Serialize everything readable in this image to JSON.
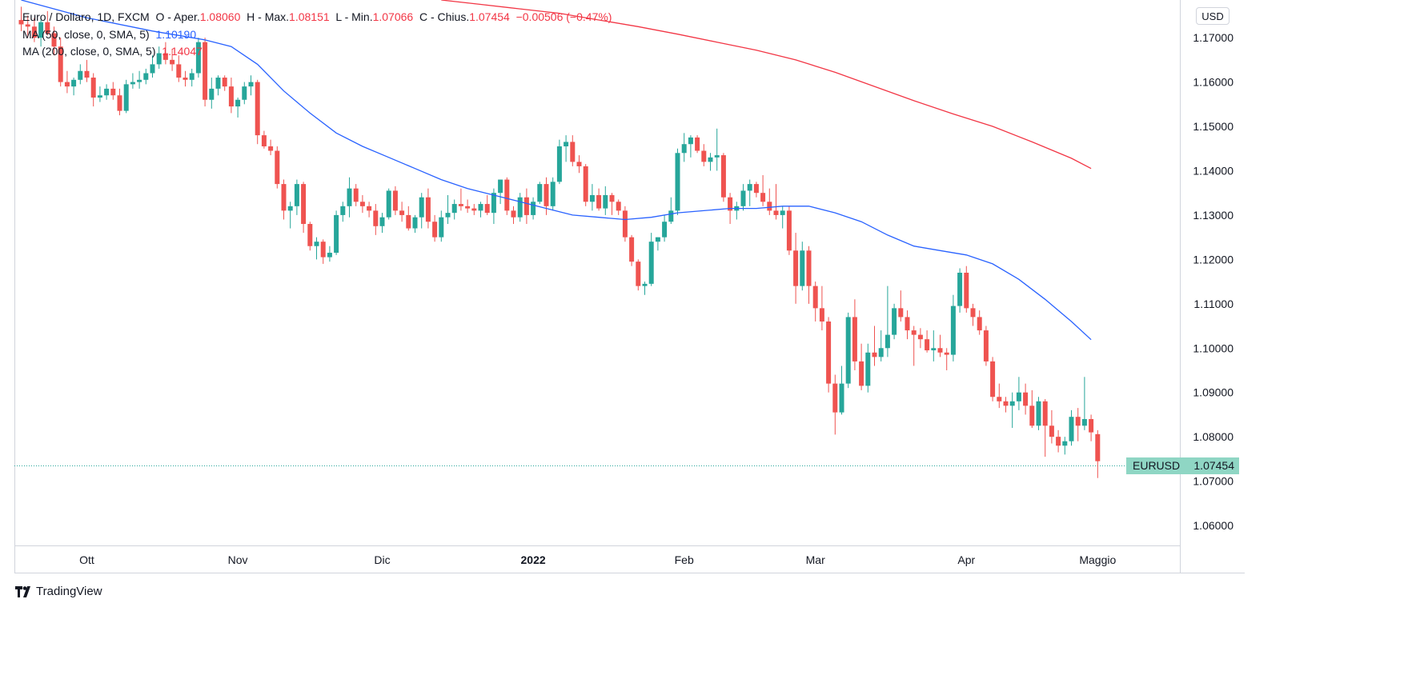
{
  "legend": {
    "symbol": "Euro / Dollaro, 1D, FXCM",
    "open_label": "O - Aper.",
    "open": "1.08060",
    "high_label": "H - Max.",
    "high": "1.08151",
    "low_label": "L - Min.",
    "low": "1.07066",
    "close_label": "C - Chius.",
    "close": "1.07454",
    "change": "−0.00506 (−0.47%)",
    "ma50_label": "MA (50, close, 0, SMA, 5)",
    "ma50_value": "1.10190",
    "ma200_label": "MA (200, close, 0, SMA, 5)",
    "ma200_value": "1.14047"
  },
  "currency": "USD",
  "last_price": {
    "symbol": "EURUSD",
    "value": "1.07454"
  },
  "branding": "TradingView",
  "colors": {
    "up": "#26a69a",
    "down": "#ef5350",
    "ma50": "#2962ff",
    "ma200": "#f23645",
    "grid": "#d1d4dc"
  },
  "chart_data": {
    "type": "candlestick",
    "title": "Euro / Dollaro, 1D, FXCM",
    "ylim": [
      1.0555,
      1.1785
    ],
    "y_ticks": [
      "1.17000",
      "1.16000",
      "1.15000",
      "1.14000",
      "1.13000",
      "1.12000",
      "1.11000",
      "1.10000",
      "1.09000",
      "1.08000",
      "1.07000",
      "1.06000"
    ],
    "x_ticks": [
      {
        "label": "Ott",
        "index": 10,
        "bold": false
      },
      {
        "label": "Nov",
        "index": 33,
        "bold": false
      },
      {
        "label": "Dic",
        "index": 55,
        "bold": false
      },
      {
        "label": "2022",
        "index": 78,
        "bold": true
      },
      {
        "label": "Feb",
        "index": 101,
        "bold": false
      },
      {
        "label": "Mar",
        "index": 121,
        "bold": false
      },
      {
        "label": "Apr",
        "index": 144,
        "bold": false
      },
      {
        "label": "Maggio",
        "index": 164,
        "bold": false
      }
    ],
    "candles": [
      [
        1.174,
        1.177,
        1.1715,
        1.173
      ],
      [
        1.173,
        1.175,
        1.17,
        1.1725
      ],
      [
        1.1725,
        1.1745,
        1.169,
        1.17
      ],
      [
        1.17,
        1.174,
        1.168,
        1.1735
      ],
      [
        1.1735,
        1.176,
        1.1705,
        1.171
      ],
      [
        1.171,
        1.1725,
        1.166,
        1.168
      ],
      [
        1.168,
        1.17,
        1.159,
        1.16
      ],
      [
        1.16,
        1.1625,
        1.1575,
        1.159
      ],
      [
        1.159,
        1.161,
        1.157,
        1.1605
      ],
      [
        1.1605,
        1.164,
        1.1595,
        1.1625
      ],
      [
        1.1625,
        1.165,
        1.16,
        1.161
      ],
      [
        1.161,
        1.162,
        1.1545,
        1.1565
      ],
      [
        1.1565,
        1.159,
        1.1555,
        1.157
      ],
      [
        1.157,
        1.1595,
        1.156,
        1.1585
      ],
      [
        1.1585,
        1.16,
        1.156,
        1.157
      ],
      [
        1.157,
        1.1585,
        1.1525,
        1.1535
      ],
      [
        1.1535,
        1.1605,
        1.153,
        1.1595
      ],
      [
        1.1595,
        1.162,
        1.1585,
        1.16
      ],
      [
        1.16,
        1.1625,
        1.1585,
        1.1605
      ],
      [
        1.1605,
        1.163,
        1.1595,
        1.162
      ],
      [
        1.162,
        1.166,
        1.161,
        1.164
      ],
      [
        1.164,
        1.168,
        1.163,
        1.1665
      ],
      [
        1.1665,
        1.169,
        1.164,
        1.165
      ],
      [
        1.165,
        1.1675,
        1.1625,
        1.164
      ],
      [
        1.164,
        1.166,
        1.16,
        1.161
      ],
      [
        1.161,
        1.1625,
        1.159,
        1.1605
      ],
      [
        1.1605,
        1.163,
        1.159,
        1.162
      ],
      [
        1.162,
        1.17,
        1.161,
        1.169
      ],
      [
        1.169,
        1.17,
        1.1545,
        1.156
      ],
      [
        1.156,
        1.161,
        1.154,
        1.1585
      ],
      [
        1.1585,
        1.1615,
        1.157,
        1.161
      ],
      [
        1.161,
        1.1615,
        1.158,
        1.159
      ],
      [
        1.159,
        1.161,
        1.153,
        1.1545
      ],
      [
        1.1545,
        1.1565,
        1.152,
        1.156
      ],
      [
        1.156,
        1.16,
        1.155,
        1.159
      ],
      [
        1.159,
        1.1615,
        1.157,
        1.16
      ],
      [
        1.16,
        1.1605,
        1.146,
        1.148
      ],
      [
        1.148,
        1.149,
        1.145,
        1.1455
      ],
      [
        1.1455,
        1.147,
        1.1435,
        1.1445
      ],
      [
        1.1445,
        1.1455,
        1.136,
        1.137
      ],
      [
        1.137,
        1.138,
        1.129,
        1.131
      ],
      [
        1.131,
        1.133,
        1.127,
        1.132
      ],
      [
        1.132,
        1.138,
        1.13,
        1.137
      ],
      [
        1.137,
        1.1375,
        1.126,
        1.128
      ],
      [
        1.128,
        1.1285,
        1.122,
        1.123
      ],
      [
        1.123,
        1.125,
        1.12,
        1.124
      ],
      [
        1.124,
        1.1245,
        1.119,
        1.1205
      ],
      [
        1.1205,
        1.123,
        1.1195,
        1.1215
      ],
      [
        1.1215,
        1.131,
        1.121,
        1.13
      ],
      [
        1.13,
        1.133,
        1.1285,
        1.132
      ],
      [
        1.132,
        1.1385,
        1.1295,
        1.136
      ],
      [
        1.136,
        1.137,
        1.132,
        1.133
      ],
      [
        1.133,
        1.1345,
        1.1305,
        1.132
      ],
      [
        1.132,
        1.133,
        1.1295,
        1.131
      ],
      [
        1.131,
        1.1325,
        1.1255,
        1.1275
      ],
      [
        1.1275,
        1.1305,
        1.126,
        1.1295
      ],
      [
        1.1295,
        1.136,
        1.129,
        1.1355
      ],
      [
        1.1355,
        1.1365,
        1.13,
        1.131
      ],
      [
        1.131,
        1.133,
        1.1285,
        1.13
      ],
      [
        1.13,
        1.132,
        1.1265,
        1.127
      ],
      [
        1.127,
        1.13,
        1.126,
        1.1295
      ],
      [
        1.1295,
        1.135,
        1.127,
        1.134
      ],
      [
        1.134,
        1.136,
        1.127,
        1.1285
      ],
      [
        1.1285,
        1.13,
        1.124,
        1.125
      ],
      [
        1.125,
        1.131,
        1.124,
        1.1295
      ],
      [
        1.1295,
        1.1345,
        1.128,
        1.1305
      ],
      [
        1.1305,
        1.1335,
        1.129,
        1.1325
      ],
      [
        1.1325,
        1.136,
        1.131,
        1.132
      ],
      [
        1.132,
        1.1335,
        1.1305,
        1.1315
      ],
      [
        1.1315,
        1.1325,
        1.13,
        1.131
      ],
      [
        1.131,
        1.133,
        1.1295,
        1.1325
      ],
      [
        1.1325,
        1.1345,
        1.13,
        1.1305
      ],
      [
        1.1305,
        1.136,
        1.128,
        1.135
      ],
      [
        1.135,
        1.138,
        1.1325,
        1.138
      ],
      [
        1.138,
        1.1385,
        1.13,
        1.131
      ],
      [
        1.131,
        1.132,
        1.128,
        1.1295
      ],
      [
        1.1295,
        1.135,
        1.1285,
        1.134
      ],
      [
        1.134,
        1.136,
        1.128,
        1.13
      ],
      [
        1.13,
        1.134,
        1.129,
        1.133
      ],
      [
        1.133,
        1.1375,
        1.1325,
        1.137
      ],
      [
        1.137,
        1.1385,
        1.13,
        1.132
      ],
      [
        1.132,
        1.1385,
        1.131,
        1.1375
      ],
      [
        1.1375,
        1.147,
        1.137,
        1.1455
      ],
      [
        1.1455,
        1.148,
        1.142,
        1.1465
      ],
      [
        1.1465,
        1.148,
        1.141,
        1.142
      ],
      [
        1.142,
        1.1435,
        1.1395,
        1.141
      ],
      [
        1.141,
        1.1415,
        1.132,
        1.133
      ],
      [
        1.133,
        1.137,
        1.131,
        1.1345
      ],
      [
        1.1345,
        1.136,
        1.131,
        1.1315
      ],
      [
        1.1315,
        1.1365,
        1.13,
        1.1345
      ],
      [
        1.1345,
        1.135,
        1.13,
        1.133
      ],
      [
        1.133,
        1.1335,
        1.13,
        1.131
      ],
      [
        1.131,
        1.132,
        1.124,
        1.125
      ],
      [
        1.125,
        1.1255,
        1.1185,
        1.1195
      ],
      [
        1.1195,
        1.12,
        1.113,
        1.114
      ],
      [
        1.114,
        1.115,
        1.112,
        1.1145
      ],
      [
        1.1145,
        1.126,
        1.114,
        1.124
      ],
      [
        1.124,
        1.125,
        1.122,
        1.125
      ],
      [
        1.125,
        1.13,
        1.124,
        1.1285
      ],
      [
        1.1285,
        1.134,
        1.128,
        1.131
      ],
      [
        1.131,
        1.145,
        1.13,
        1.144
      ],
      [
        1.144,
        1.1485,
        1.142,
        1.146
      ],
      [
        1.146,
        1.148,
        1.143,
        1.1475
      ],
      [
        1.1475,
        1.148,
        1.144,
        1.1445
      ],
      [
        1.1445,
        1.146,
        1.141,
        1.142
      ],
      [
        1.142,
        1.144,
        1.14,
        1.143
      ],
      [
        1.143,
        1.1495,
        1.14,
        1.1435
      ],
      [
        1.1435,
        1.144,
        1.133,
        1.134
      ],
      [
        1.134,
        1.135,
        1.128,
        1.131
      ],
      [
        1.131,
        1.133,
        1.129,
        1.132
      ],
      [
        1.132,
        1.137,
        1.131,
        1.1355
      ],
      [
        1.1355,
        1.138,
        1.132,
        1.137
      ],
      [
        1.137,
        1.1375,
        1.134,
        1.135
      ],
      [
        1.135,
        1.139,
        1.132,
        1.133
      ],
      [
        1.133,
        1.136,
        1.13,
        1.131
      ],
      [
        1.131,
        1.137,
        1.129,
        1.13
      ],
      [
        1.13,
        1.132,
        1.127,
        1.131
      ],
      [
        1.131,
        1.132,
        1.121,
        1.122
      ],
      [
        1.122,
        1.126,
        1.11,
        1.114
      ],
      [
        1.114,
        1.124,
        1.113,
        1.122
      ],
      [
        1.122,
        1.123,
        1.11,
        1.114
      ],
      [
        1.114,
        1.115,
        1.106,
        1.109
      ],
      [
        1.109,
        1.114,
        1.104,
        1.106
      ],
      [
        1.106,
        1.107,
        1.09,
        1.092
      ],
      [
        1.092,
        1.094,
        1.0805,
        1.0855
      ],
      [
        1.0855,
        1.096,
        1.085,
        1.092
      ],
      [
        1.092,
        1.108,
        1.091,
        1.107
      ],
      [
        1.107,
        1.111,
        1.095,
        1.097
      ],
      [
        1.097,
        1.101,
        1.0905,
        1.0915
      ],
      [
        1.0915,
        1.101,
        1.09,
        1.099
      ],
      [
        1.099,
        1.105,
        1.096,
        1.098
      ],
      [
        1.098,
        1.104,
        1.097,
        1.1
      ],
      [
        1.1,
        1.114,
        1.098,
        1.103
      ],
      [
        1.103,
        1.11,
        1.102,
        1.109
      ],
      [
        1.109,
        1.113,
        1.106,
        1.107
      ],
      [
        1.107,
        1.1085,
        1.102,
        1.104
      ],
      [
        1.104,
        1.105,
        1.096,
        1.103
      ],
      [
        1.103,
        1.1045,
        1.1,
        1.102
      ],
      [
        1.102,
        1.104,
        1.099,
        1.0995
      ],
      [
        1.0995,
        1.104,
        1.097,
        1.1
      ],
      [
        1.1,
        1.103,
        1.098,
        1.099
      ],
      [
        1.099,
        1.1,
        1.095,
        1.0985
      ],
      [
        1.0985,
        1.112,
        1.097,
        1.1095
      ],
      [
        1.1095,
        1.118,
        1.108,
        1.117
      ],
      [
        1.117,
        1.1185,
        1.108,
        1.109
      ],
      [
        1.109,
        1.11,
        1.105,
        1.107
      ],
      [
        1.107,
        1.1085,
        1.103,
        1.104
      ],
      [
        1.104,
        1.105,
        1.096,
        1.097
      ],
      [
        1.097,
        1.098,
        1.088,
        1.089
      ],
      [
        1.089,
        1.092,
        1.0865,
        1.088
      ],
      [
        1.088,
        1.089,
        1.0855,
        1.087
      ],
      [
        1.087,
        1.09,
        1.082,
        1.088
      ],
      [
        1.088,
        1.0935,
        1.086,
        1.09
      ],
      [
        1.09,
        1.092,
        1.085,
        1.087
      ],
      [
        1.087,
        1.0905,
        1.082,
        1.0825
      ],
      [
        1.0825,
        1.089,
        1.0815,
        1.088
      ],
      [
        1.088,
        1.0885,
        1.0755,
        1.0825
      ],
      [
        1.0825,
        1.086,
        1.0785,
        1.08
      ],
      [
        1.08,
        1.0815,
        1.0765,
        1.078
      ],
      [
        1.078,
        1.08,
        1.076,
        1.079
      ],
      [
        1.079,
        1.086,
        1.078,
        1.0845
      ],
      [
        1.0845,
        1.0865,
        1.079,
        1.0825
      ],
      [
        1.0825,
        1.0935,
        1.0815,
        1.084
      ],
      [
        1.084,
        1.085,
        1.079,
        1.081
      ],
      [
        1.0806,
        1.0815,
        1.0707,
        1.0745
      ]
    ],
    "ma50": [
      [
        0,
        1.1785
      ],
      [
        10,
        1.1745
      ],
      [
        20,
        1.1715
      ],
      [
        28,
        1.1695
      ],
      [
        32,
        1.168
      ],
      [
        36,
        1.164
      ],
      [
        40,
        1.158
      ],
      [
        44,
        1.153
      ],
      [
        48,
        1.1485
      ],
      [
        52,
        1.1455
      ],
      [
        56,
        1.143
      ],
      [
        60,
        1.1405
      ],
      [
        64,
        1.138
      ],
      [
        68,
        1.136
      ],
      [
        72,
        1.1345
      ],
      [
        76,
        1.133
      ],
      [
        80,
        1.1315
      ],
      [
        84,
        1.13
      ],
      [
        88,
        1.1295
      ],
      [
        92,
        1.129
      ],
      [
        96,
        1.1295
      ],
      [
        100,
        1.1305
      ],
      [
        104,
        1.131
      ],
      [
        108,
        1.1315
      ],
      [
        112,
        1.1315
      ],
      [
        116,
        1.132
      ],
      [
        120,
        1.132
      ],
      [
        124,
        1.1305
      ],
      [
        128,
        1.1285
      ],
      [
        132,
        1.1255
      ],
      [
        136,
        1.123
      ],
      [
        140,
        1.122
      ],
      [
        144,
        1.121
      ],
      [
        148,
        1.119
      ],
      [
        152,
        1.1155
      ],
      [
        156,
        1.111
      ],
      [
        160,
        1.106
      ],
      [
        163,
        1.1019
      ]
    ],
    "ma200": [
      [
        64,
        1.1785
      ],
      [
        70,
        1.1775
      ],
      [
        76,
        1.1765
      ],
      [
        82,
        1.1755
      ],
      [
        88,
        1.174
      ],
      [
        94,
        1.1725
      ],
      [
        100,
        1.1708
      ],
      [
        106,
        1.169
      ],
      [
        112,
        1.1672
      ],
      [
        118,
        1.165
      ],
      [
        124,
        1.1622
      ],
      [
        130,
        1.159
      ],
      [
        136,
        1.1558
      ],
      [
        142,
        1.1528
      ],
      [
        148,
        1.15
      ],
      [
        154,
        1.1465
      ],
      [
        160,
        1.1428
      ],
      [
        163,
        1.1405
      ]
    ]
  }
}
